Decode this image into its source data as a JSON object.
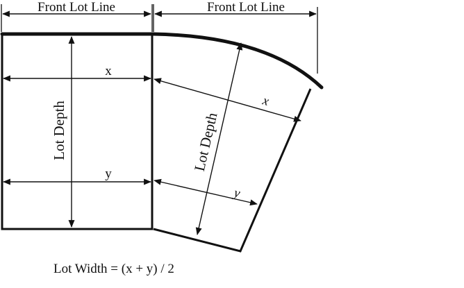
{
  "labels": {
    "front_lot_line_left": "Front Lot Line",
    "front_lot_line_right": "Front Lot Line",
    "x_left": "x",
    "y_left": "y",
    "x_right": "x",
    "y_right": "y",
    "lot_depth_left": "Lot Depth",
    "lot_depth_right": "Lot Depth",
    "formula": "Lot Width = (x + y) / 2"
  },
  "colors": {
    "line": "#111111",
    "background": "#ffffff"
  }
}
